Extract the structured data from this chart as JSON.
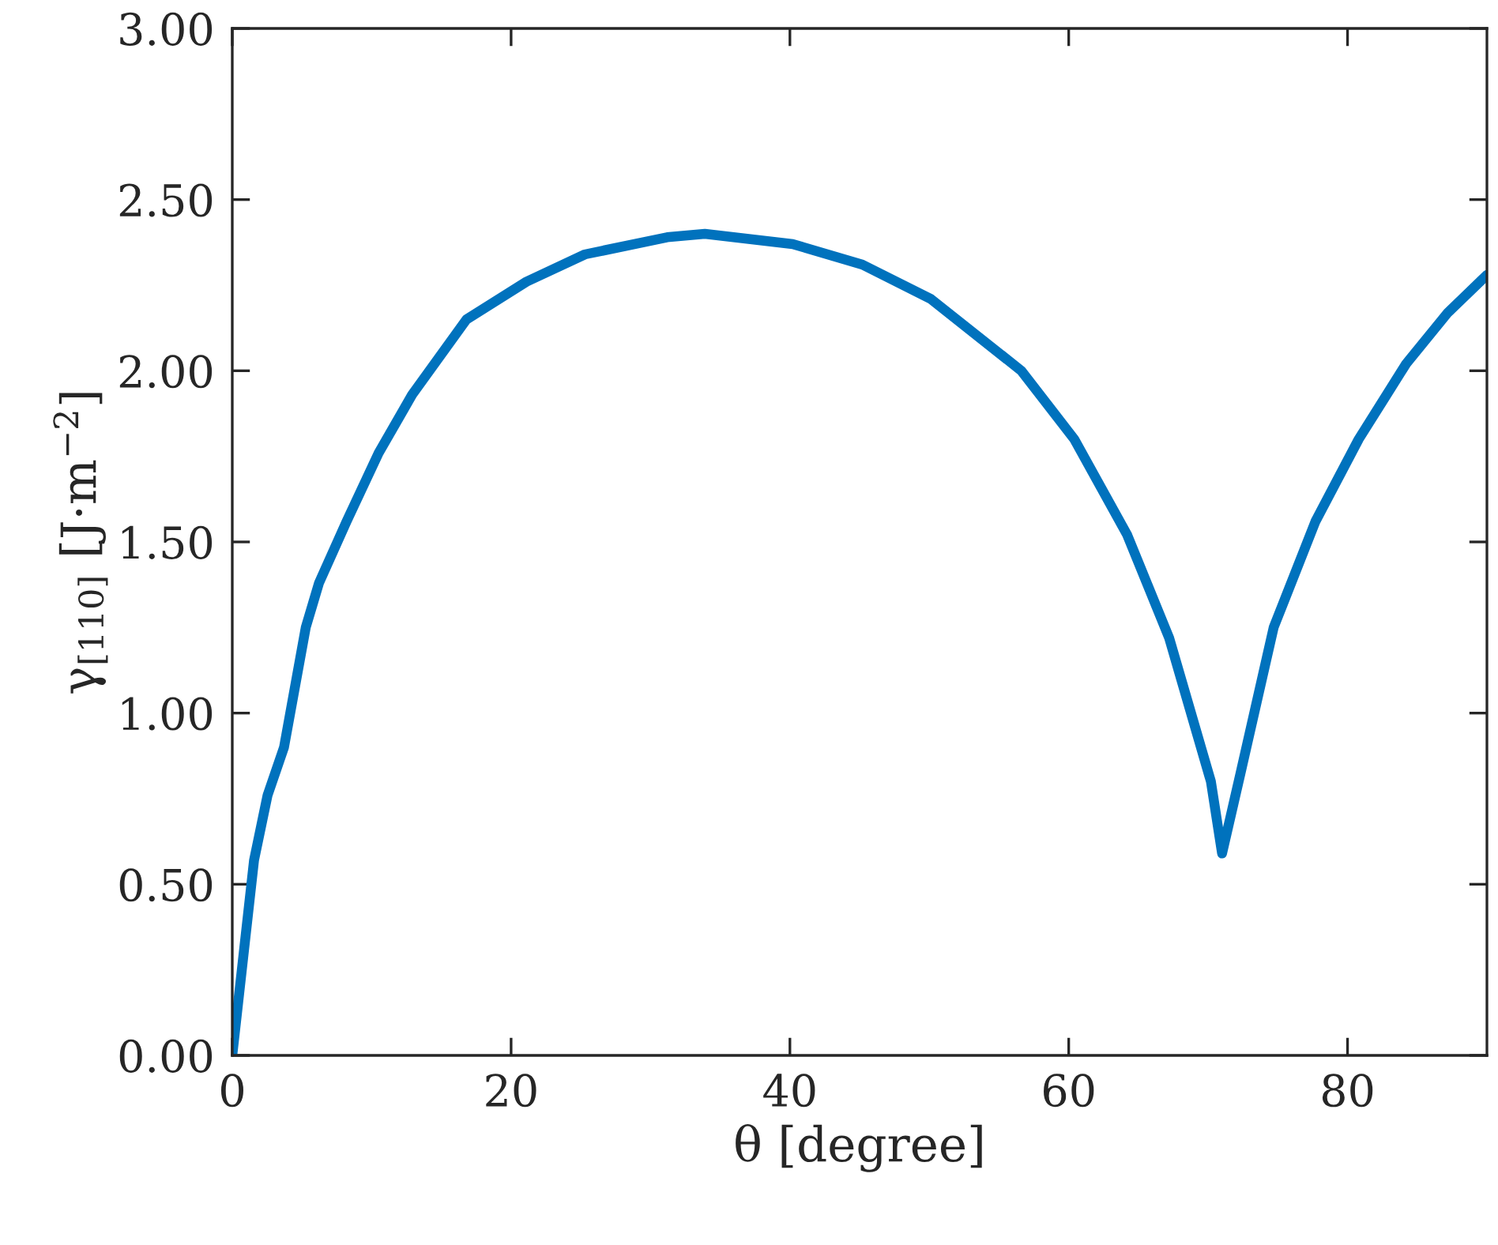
{
  "chart_data": {
    "type": "line",
    "xlabel": "θ [degree]",
    "ylabel": "γ$_{[110]}$ [J·m$^{−2}$]",
    "series": [
      {
        "color": "#0072bd",
        "x": [
          0,
          1.56,
          2.53,
          3.71,
          5.27,
          6.22,
          8.2,
          10.5,
          12.9,
          16.8,
          21.1,
          25.3,
          31.2,
          33.9,
          40.2,
          45.2,
          50.1,
          56.6,
          60.4,
          64.2,
          67.2,
          70.2,
          71.0,
          72.3,
          74.7,
          77.7,
          80.8,
          84.2,
          87.2,
          90
        ],
        "values": [
          0,
          0.57,
          0.76,
          0.9,
          1.25,
          1.38,
          1.56,
          1.76,
          1.93,
          2.15,
          2.26,
          2.34,
          2.39,
          2.4,
          2.37,
          2.31,
          2.21,
          2.0,
          1.8,
          1.52,
          1.22,
          0.8,
          0.59,
          0.82,
          1.25,
          1.56,
          1.8,
          2.02,
          2.17,
          2.28
        ]
      }
    ],
    "xlim": [
      0,
      90
    ],
    "xticks": [
      0,
      20,
      40,
      60,
      80
    ],
    "ylim": [
      0,
      3
    ],
    "yticks": [
      {
        "value": 0,
        "label": "0.00"
      },
      {
        "value": 0.5,
        "label": "0.50"
      },
      {
        "value": 1,
        "label": "1.00"
      },
      {
        "value": 1.5,
        "label": "1.50"
      },
      {
        "value": 2,
        "label": "2.00"
      },
      {
        "value": 2.5,
        "label": "2.50"
      },
      {
        "value": 3,
        "label": "3.00"
      }
    ],
    "grid": false,
    "legend": false,
    "marker": "none",
    "line_style": "solid"
  }
}
